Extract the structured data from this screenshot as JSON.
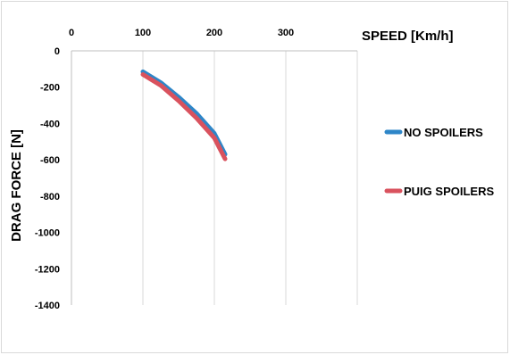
{
  "chart_data": {
    "type": "line",
    "xlabel": "SPEED [Km/h]",
    "ylabel": "DRAG FORCE [N]",
    "xlim": [
      0,
      400
    ],
    "ylim": [
      -1400,
      0
    ],
    "x_ticks": [
      "0",
      "100",
      "200",
      "300"
    ],
    "y_ticks": [
      "0",
      "-200",
      "-400",
      "-600",
      "-800",
      "-1000",
      "-1200",
      "-1400"
    ],
    "x_axis_position": "top",
    "grid": "vertical",
    "legend_position": "right",
    "series": [
      {
        "name": "NO SPOILERS",
        "color": "#2e86c8",
        "x": [
          100,
          125,
          150,
          175,
          200,
          215
        ],
        "y": [
          -115,
          -175,
          -255,
          -345,
          -455,
          -570
        ]
      },
      {
        "name": "PUIG SPOILERS",
        "color": "#d9525e",
        "x": [
          100,
          125,
          150,
          175,
          200,
          215
        ],
        "y": [
          -130,
          -190,
          -275,
          -370,
          -480,
          -595
        ]
      }
    ]
  }
}
